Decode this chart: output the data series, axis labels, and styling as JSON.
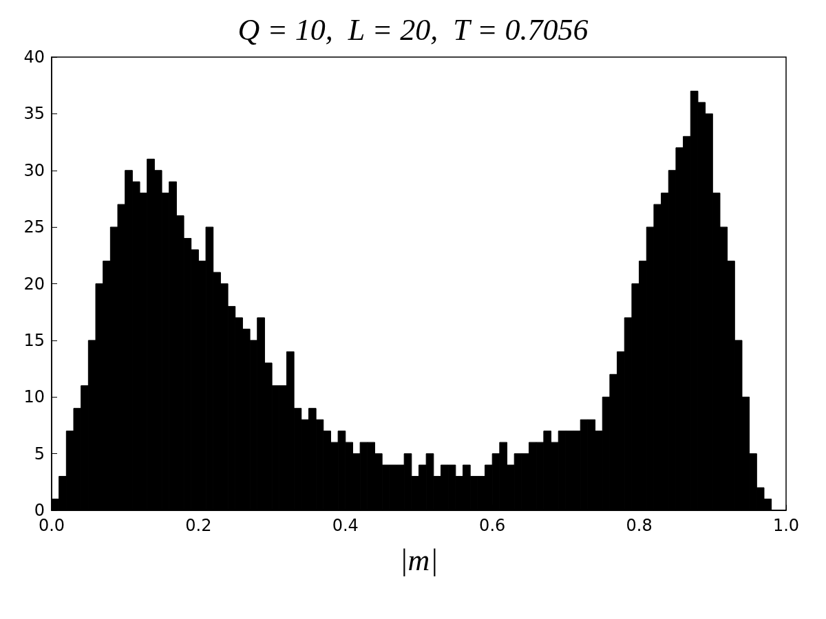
{
  "chart_data": {
    "type": "histogram",
    "title": "Q = 10,  L = 20,  T = 0.7056",
    "xlabel": "|m|",
    "color": "#000000",
    "bins": [
      0,
      0.01,
      0.02,
      0.03,
      0.04,
      0.05,
      0.06,
      0.07,
      0.08,
      0.09,
      0.1,
      0.11,
      0.12,
      0.13,
      0.14,
      0.15,
      0.16,
      0.17,
      0.18,
      0.19,
      0.2,
      0.21,
      0.22,
      0.23,
      0.24,
      0.25,
      0.26,
      0.27,
      0.28,
      0.29,
      0.3,
      0.31,
      0.32,
      0.33,
      0.34,
      0.35,
      0.36,
      0.37,
      0.38,
      0.39,
      0.4,
      0.41,
      0.42,
      0.43,
      0.44,
      0.45,
      0.46,
      0.47,
      0.48,
      0.49,
      0.5,
      0.51,
      0.52,
      0.53,
      0.54,
      0.55,
      0.56,
      0.57,
      0.58,
      0.59,
      0.6,
      0.61,
      0.62,
      0.63,
      0.64,
      0.65,
      0.66,
      0.67,
      0.68,
      0.69,
      0.7,
      0.71,
      0.72,
      0.73,
      0.74,
      0.75,
      0.76,
      0.77,
      0.78,
      0.79,
      0.8,
      0.81,
      0.82,
      0.83,
      0.84,
      0.85,
      0.86,
      0.87,
      0.88,
      0.89,
      0.9,
      0.91,
      0.92,
      0.93,
      0.94,
      0.95,
      0.96,
      0.97,
      0.98,
      0.99,
      1.0
    ],
    "values": [
      1,
      3,
      7,
      9,
      11,
      15,
      20,
      22,
      25,
      27,
      30,
      29,
      28,
      31,
      30,
      28,
      29,
      26,
      24,
      23,
      22,
      25,
      21,
      20,
      18,
      17,
      16,
      15,
      17,
      13,
      11,
      11,
      14,
      9,
      8,
      9,
      8,
      7,
      6,
      7,
      6,
      5,
      6,
      6,
      5,
      4,
      4,
      4,
      5,
      3,
      4,
      5,
      3,
      4,
      4,
      3,
      4,
      3,
      3,
      4,
      5,
      6,
      4,
      5,
      5,
      6,
      6,
      7,
      6,
      7,
      7,
      7,
      8,
      8,
      7,
      10,
      12,
      14,
      17,
      20,
      22,
      25,
      27,
      28,
      30,
      32,
      33,
      37,
      36,
      35,
      28,
      25,
      22,
      15,
      10,
      5,
      2,
      1,
      0,
      0
    ],
    "xlim": [
      0,
      1
    ],
    "xticks": [
      {
        "value": 0,
        "label": "0.0"
      },
      {
        "value": 0.2,
        "label": "0.2"
      },
      {
        "value": 0.4,
        "label": "0.4"
      },
      {
        "value": 0.6,
        "label": "0.6"
      },
      {
        "value": 0.8,
        "label": "0.8"
      },
      {
        "value": 1,
        "label": "1.0"
      }
    ],
    "ylim": [
      0,
      40
    ],
    "yticks": [
      0,
      5,
      10,
      15,
      20,
      25,
      30,
      35,
      40
    ],
    "grid": false
  }
}
